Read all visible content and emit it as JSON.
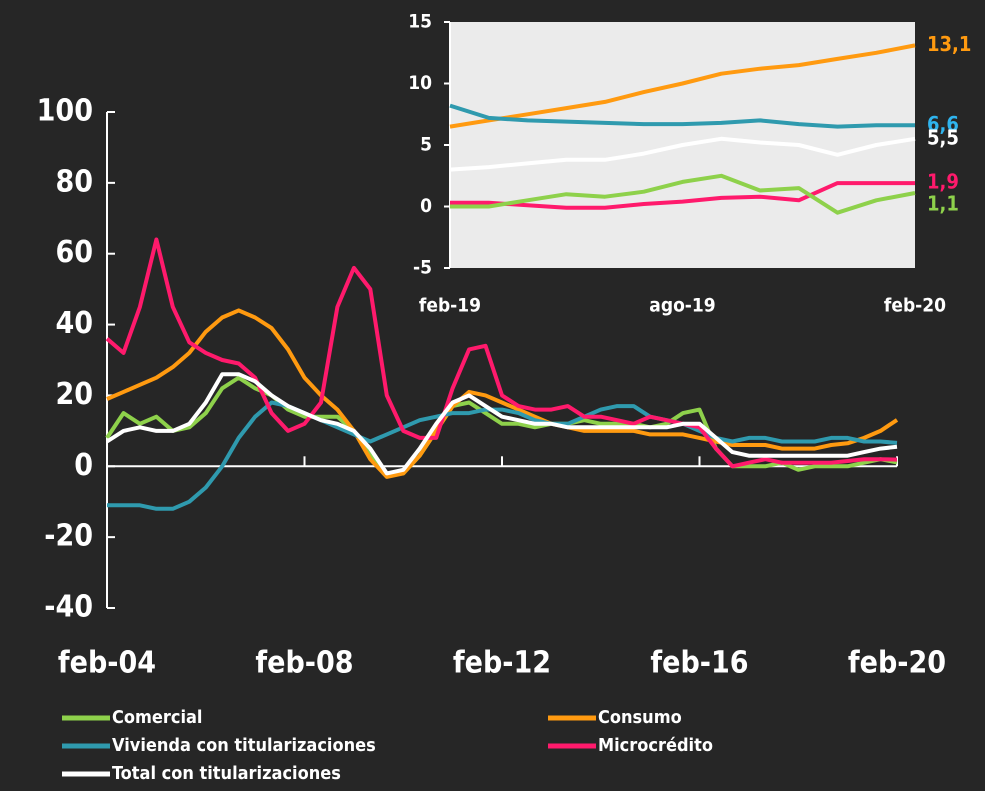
{
  "chart_data": [
    {
      "type": "line",
      "categories": [
        "feb-04",
        null,
        null,
        null,
        null,
        null,
        null,
        null,
        null,
        null,
        null,
        null,
        "feb-08",
        null,
        null,
        null,
        null,
        null,
        null,
        null,
        null,
        null,
        null,
        null,
        "feb-12",
        null,
        null,
        null,
        null,
        null,
        null,
        null,
        null,
        null,
        null,
        null,
        "feb-16",
        null,
        null,
        null,
        null,
        null,
        null,
        null,
        null,
        null,
        null,
        null,
        "feb-20"
      ],
      "ylim": [
        -40,
        100
      ],
      "yticks": [
        -40,
        -20,
        0,
        20,
        40,
        60,
        80,
        100
      ],
      "legend": "bottom",
      "series": [
        {
          "name": "Comercial",
          "color": "#8ed14b",
          "values": [
            8,
            15,
            12,
            14,
            10,
            11,
            15,
            22,
            25,
            22,
            20,
            16,
            14,
            14,
            14,
            10,
            3,
            -2,
            -2,
            3,
            10,
            17,
            18,
            15,
            12,
            12,
            11,
            12,
            12,
            13,
            12,
            12,
            12,
            11,
            12,
            15,
            16,
            5,
            0,
            0,
            0,
            1,
            -1,
            0,
            0,
            0,
            1,
            2,
            1.1
          ]
        },
        {
          "name": "Consumo",
          "color": "#ff9a10",
          "values": [
            19,
            21,
            23,
            25,
            28,
            32,
            38,
            42,
            44,
            42,
            39,
            33,
            25,
            20,
            16,
            10,
            2,
            -3,
            -2,
            3,
            10,
            17,
            21,
            20,
            18,
            16,
            14,
            12,
            11,
            10,
            10,
            10,
            10,
            9,
            9,
            9,
            8,
            7,
            6,
            6,
            6,
            5,
            5,
            5,
            6,
            6.5,
            8,
            10,
            13.1
          ]
        },
        {
          "name": "Vivienda con titularizaciones",
          "color": "#2f9aae",
          "values": [
            -11,
            -11,
            -11,
            -12,
            -12,
            -10,
            -6,
            0,
            8,
            14,
            18,
            17,
            15,
            13,
            11,
            9,
            7,
            9,
            11,
            13,
            14,
            15,
            15,
            16,
            16,
            15,
            13,
            12,
            12,
            14,
            16,
            17,
            17,
            14,
            13,
            12,
            10,
            8,
            7,
            8,
            8,
            7,
            7,
            7,
            8,
            8,
            7,
            7,
            6.6
          ]
        },
        {
          "name": "Microcrédito",
          "color": "#ff1a6c",
          "values": [
            36,
            32,
            45,
            64,
            45,
            35,
            32,
            30,
            29,
            25,
            15,
            10,
            12,
            18,
            45,
            56,
            50,
            20,
            10,
            8,
            8,
            22,
            33,
            34,
            20,
            17,
            16,
            16,
            17,
            14,
            14,
            13,
            12,
            14,
            13,
            12,
            11,
            5,
            0,
            1,
            2,
            1,
            1,
            1,
            1,
            1.5,
            2,
            2,
            1.9
          ]
        },
        {
          "name": "Total con titularizaciones",
          "color": "#ffffff",
          "values": [
            7,
            10,
            11,
            10,
            10,
            12,
            18,
            26,
            26,
            24,
            20,
            17,
            15,
            13,
            12,
            10,
            5,
            -2,
            -1,
            5,
            12,
            18,
            20,
            17,
            14,
            13,
            12,
            12,
            11,
            11,
            11,
            11,
            11,
            11,
            11,
            12,
            12,
            8,
            4,
            3,
            3,
            3,
            3,
            3,
            3,
            3,
            4,
            5,
            5.5
          ]
        }
      ]
    },
    {
      "type": "line",
      "categories": [
        "feb-19",
        null,
        null,
        null,
        null,
        null,
        "ago-19",
        null,
        null,
        null,
        null,
        null,
        "feb-20"
      ],
      "ylim": [
        -5,
        15
      ],
      "yticks": [
        -5,
        0,
        5,
        10,
        15
      ],
      "series": [
        {
          "name": "Consumo",
          "color": "#ff9a10",
          "values": [
            6.5,
            7,
            7.5,
            8,
            8.5,
            9.3,
            10,
            10.8,
            11.2,
            11.5,
            12,
            12.5,
            13.1
          ],
          "value_labels": [
            null,
            null,
            null,
            null,
            null,
            null,
            null,
            null,
            null,
            null,
            null,
            null,
            "13,1"
          ]
        },
        {
          "name": "Vivienda con titularizaciones",
          "color": "#2f9aae",
          "label_color": "#2fb4ee",
          "values": [
            8.2,
            7.2,
            7,
            6.9,
            6.8,
            6.7,
            6.7,
            6.8,
            7,
            6.7,
            6.5,
            6.6,
            6.6
          ],
          "value_labels": [
            null,
            null,
            null,
            null,
            null,
            null,
            null,
            null,
            null,
            null,
            null,
            null,
            "6,6"
          ]
        },
        {
          "name": "Total con titularizaciones",
          "color": "#ffffff",
          "values": [
            3,
            3.2,
            3.5,
            3.8,
            3.8,
            4.3,
            5,
            5.5,
            5.2,
            5,
            4.2,
            5,
            5.5
          ],
          "value_labels": [
            null,
            null,
            null,
            null,
            null,
            null,
            null,
            null,
            null,
            null,
            null,
            null,
            "5,5"
          ]
        },
        {
          "name": "Microcrédito",
          "color": "#ff1a6c",
          "values": [
            0.3,
            0.3,
            0.1,
            -0.1,
            -0.1,
            0.2,
            0.4,
            0.7,
            0.8,
            0.5,
            1.9,
            1.9,
            1.9
          ],
          "value_labels": [
            null,
            null,
            null,
            null,
            null,
            null,
            null,
            null,
            null,
            null,
            null,
            null,
            "1,9"
          ]
        },
        {
          "name": "Comercial",
          "color": "#8ed14b",
          "values": [
            0,
            0,
            0.5,
            1,
            0.8,
            1.2,
            2,
            2.5,
            1.3,
            1.5,
            -0.5,
            0.5,
            1.1
          ],
          "value_labels": [
            null,
            null,
            null,
            null,
            null,
            null,
            null,
            null,
            null,
            null,
            null,
            null,
            "1,1"
          ]
        }
      ]
    }
  ]
}
